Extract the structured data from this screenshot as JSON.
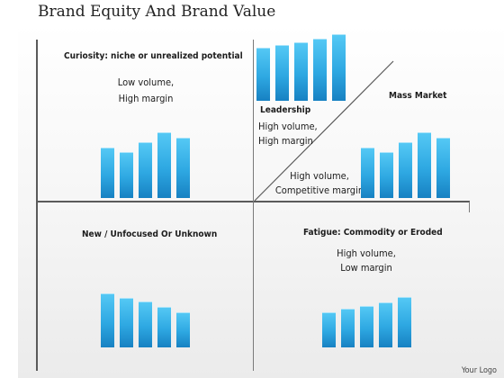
{
  "slide": {
    "title": "Brand Equity And Brand Value",
    "logo_text": "Your Logo"
  },
  "quadrants": {
    "curiosity": {
      "heading": "Curiosity: niche or unrealized potential",
      "line1": "Low volume,",
      "line2": "High margin"
    },
    "leadership": {
      "heading": "Leadership",
      "line1": "High volume,",
      "line2": "High margin"
    },
    "mass_market": {
      "heading": "Mass Market",
      "line1": "High volume,",
      "line2": "Competitive margin"
    },
    "unfocused": {
      "heading": "New / Unfocused  Or Unknown"
    },
    "fatigue": {
      "heading": "Fatigue:  Commodity  or Eroded",
      "line1": "High volume,",
      "line2": "Low margin"
    }
  },
  "bar_groups": {
    "curiosity": [
      0.77,
      0.7,
      0.85,
      1.0,
      0.92
    ],
    "leadership": [
      0.8,
      0.84,
      0.88,
      0.93,
      1.0
    ],
    "mass_market": [
      0.77,
      0.7,
      0.85,
      1.0,
      0.92
    ],
    "unfocused": [
      1.0,
      0.92,
      0.85,
      0.75,
      0.65
    ],
    "fatigue": [
      0.65,
      0.71,
      0.77,
      0.84,
      0.93
    ]
  },
  "colors": {
    "bar": "#2ea8e2",
    "axis": "#5a5a5a"
  }
}
